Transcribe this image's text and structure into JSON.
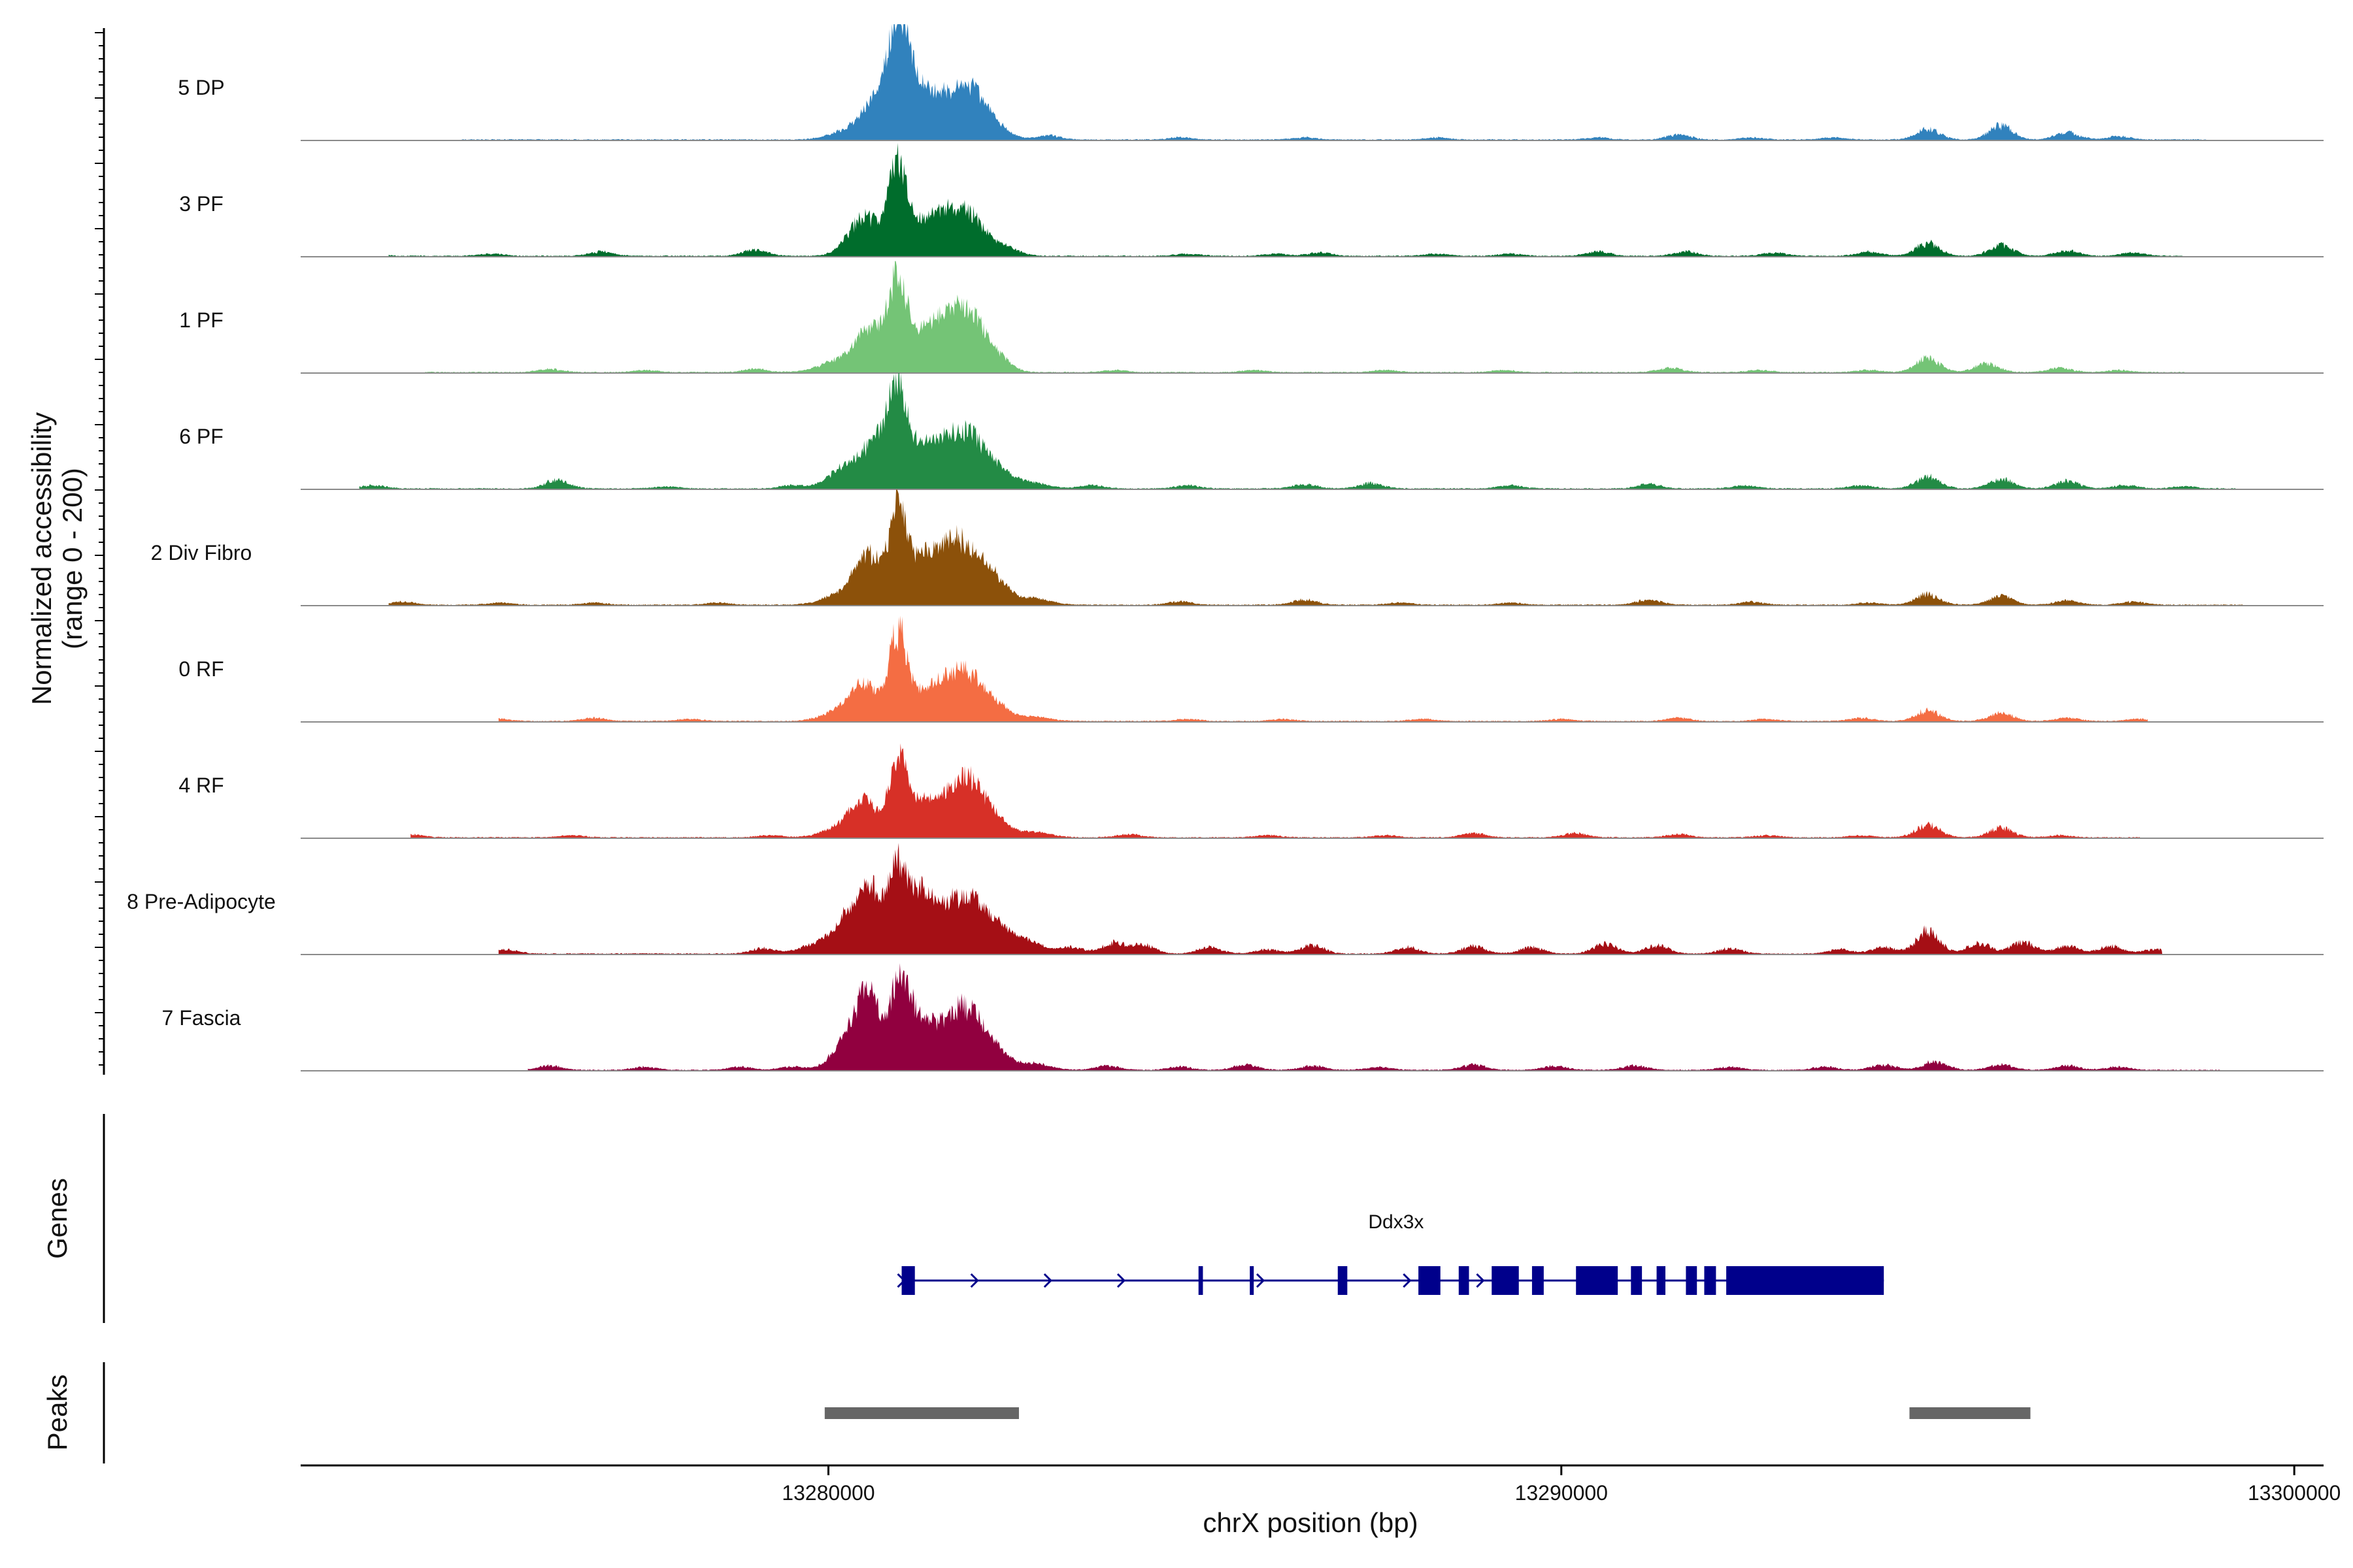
{
  "chart_data": {
    "type": "area",
    "title": "",
    "ylabel": "Normalized accessibility",
    "ylabel_range": "(range 0 - 200)",
    "yrange": [
      0,
      200
    ],
    "xlabel": "chrX position (bp)",
    "xlim": [
      13272800,
      13300400
    ],
    "xticks": [
      13280000,
      13290000,
      13300000
    ],
    "xtick_labels": [
      "13280000",
      "13290000",
      "13300000"
    ],
    "tracks": [
      {
        "name": "5 DP",
        "color": "#3182BD",
        "peaks": [
          [
            13280400,
            12,
            280
          ],
          [
            13280700,
            32,
            180
          ],
          [
            13280950,
            80,
            130
          ],
          [
            13281150,
            48,
            180
          ],
          [
            13281500,
            28,
            180
          ],
          [
            13281900,
            48,
            220
          ],
          [
            13282300,
            10,
            180
          ]
        ],
        "bumps": [
          [
            13283000,
            4
          ],
          [
            13284800,
            2
          ],
          [
            13286500,
            2
          ],
          [
            13288300,
            2
          ],
          [
            13290500,
            2
          ],
          [
            13291600,
            5
          ],
          [
            13292600,
            2
          ],
          [
            13293700,
            2
          ],
          [
            13295000,
            10
          ],
          [
            13296000,
            13
          ],
          [
            13296900,
            7
          ],
          [
            13297600,
            3
          ]
        ],
        "range": [
          13275000,
          13298800
        ]
      },
      {
        "name": "3 PF",
        "color": "#006D2C",
        "peaks": [
          [
            13280500,
            36,
            220
          ],
          [
            13280950,
            82,
            120
          ],
          [
            13281250,
            24,
            160
          ],
          [
            13281550,
            28,
            180
          ],
          [
            13281900,
            38,
            220
          ],
          [
            13282400,
            8,
            180
          ]
        ],
        "bumps": [
          [
            13273700,
            4
          ],
          [
            13275400,
            2
          ],
          [
            13276900,
            4
          ],
          [
            13279000,
            6
          ],
          [
            13284900,
            2
          ],
          [
            13286100,
            2
          ],
          [
            13286700,
            3
          ],
          [
            13288300,
            2
          ],
          [
            13289300,
            2
          ],
          [
            13290500,
            4
          ],
          [
            13291700,
            4
          ],
          [
            13292900,
            3
          ],
          [
            13294200,
            4
          ],
          [
            13295000,
            12
          ],
          [
            13296000,
            10
          ],
          [
            13296900,
            5
          ],
          [
            13297800,
            3
          ]
        ],
        "range": [
          13274000,
          13298500
        ]
      },
      {
        "name": "1 PF",
        "color": "#74C476",
        "peaks": [
          [
            13280200,
            12,
            280
          ],
          [
            13280600,
            40,
            180
          ],
          [
            13280950,
            80,
            120
          ],
          [
            13281250,
            26,
            160
          ],
          [
            13281550,
            36,
            200
          ],
          [
            13281900,
            52,
            220
          ],
          [
            13282300,
            12,
            180
          ]
        ],
        "bumps": [
          [
            13276200,
            3
          ],
          [
            13277500,
            2
          ],
          [
            13279000,
            3
          ],
          [
            13283900,
            2
          ],
          [
            13285800,
            2
          ],
          [
            13287600,
            2
          ],
          [
            13289200,
            2
          ],
          [
            13291500,
            4
          ],
          [
            13292700,
            2
          ],
          [
            13294200,
            2
          ],
          [
            13295000,
            13
          ],
          [
            13295800,
            8
          ],
          [
            13296800,
            4
          ],
          [
            13297600,
            2
          ]
        ],
        "range": [
          13274500,
          13298500
        ]
      },
      {
        "name": "6 PF",
        "color": "#238B45",
        "peaks": [
          [
            13280300,
            22,
            250
          ],
          [
            13280700,
            40,
            180
          ],
          [
            13280950,
            80,
            120
          ],
          [
            13281250,
            32,
            160
          ],
          [
            13281550,
            28,
            180
          ],
          [
            13281900,
            48,
            220
          ],
          [
            13282300,
            14,
            180
          ],
          [
            13282700,
            6,
            250
          ]
        ],
        "bumps": [
          [
            13273800,
            3
          ],
          [
            13276300,
            8
          ],
          [
            13277800,
            2
          ],
          [
            13279500,
            3
          ],
          [
            13283600,
            3
          ],
          [
            13284900,
            3
          ],
          [
            13286500,
            4
          ],
          [
            13287400,
            5
          ],
          [
            13289300,
            3
          ],
          [
            13291200,
            4
          ],
          [
            13292500,
            3
          ],
          [
            13294100,
            3
          ],
          [
            13295000,
            11
          ],
          [
            13296000,
            9
          ],
          [
            13296900,
            7
          ],
          [
            13297700,
            3
          ],
          [
            13298500,
            2
          ]
        ],
        "range": [
          13273600,
          13299200
        ]
      },
      {
        "name": "2 Div Fibro",
        "color": "#8C510A",
        "peaks": [
          [
            13280200,
            10,
            250
          ],
          [
            13280550,
            44,
            180
          ],
          [
            13280950,
            90,
            120
          ],
          [
            13281250,
            32,
            160
          ],
          [
            13281550,
            38,
            180
          ],
          [
            13281900,
            50,
            220
          ],
          [
            13282300,
            18,
            180
          ],
          [
            13282800,
            6,
            220
          ]
        ],
        "bumps": [
          [
            13274200,
            3
          ],
          [
            13275500,
            2
          ],
          [
            13276800,
            2
          ],
          [
            13278500,
            2
          ],
          [
            13284800,
            3
          ],
          [
            13286500,
            5
          ],
          [
            13287800,
            2
          ],
          [
            13289300,
            2
          ],
          [
            13291200,
            5
          ],
          [
            13292600,
            3
          ],
          [
            13294200,
            2
          ],
          [
            13295000,
            10
          ],
          [
            13296000,
            8
          ],
          [
            13296900,
            4
          ],
          [
            13297800,
            3
          ]
        ],
        "range": [
          13274000,
          13299300
        ]
      },
      {
        "name": "0 RF",
        "color": "#F46D43",
        "peaks": [
          [
            13280200,
            10,
            250
          ],
          [
            13280500,
            32,
            180
          ],
          [
            13280950,
            80,
            120
          ],
          [
            13281250,
            20,
            160
          ],
          [
            13281550,
            26,
            180
          ],
          [
            13281900,
            40,
            220
          ],
          [
            13282300,
            12,
            180
          ],
          [
            13282800,
            4,
            220
          ]
        ],
        "bumps": [
          [
            13275500,
            2
          ],
          [
            13276800,
            3
          ],
          [
            13278100,
            2
          ],
          [
            13284900,
            2
          ],
          [
            13286200,
            2
          ],
          [
            13288100,
            2
          ],
          [
            13290000,
            2
          ],
          [
            13291600,
            3
          ],
          [
            13292800,
            2
          ],
          [
            13294100,
            3
          ],
          [
            13295000,
            10
          ],
          [
            13296000,
            8
          ],
          [
            13296900,
            3
          ],
          [
            13297900,
            2
          ]
        ],
        "range": [
          13275500,
          13298000
        ]
      },
      {
        "name": "4 RF",
        "color": "#D73027",
        "peaks": [
          [
            13280200,
            10,
            250
          ],
          [
            13280500,
            30,
            180
          ],
          [
            13280950,
            70,
            120
          ],
          [
            13281250,
            28,
            160
          ],
          [
            13281550,
            20,
            180
          ],
          [
            13281900,
            52,
            220
          ],
          [
            13282300,
            12,
            180
          ],
          [
            13282800,
            5,
            220
          ]
        ],
        "bumps": [
          [
            13274300,
            3
          ],
          [
            13276500,
            2
          ],
          [
            13279200,
            2
          ],
          [
            13284100,
            3
          ],
          [
            13286000,
            2
          ],
          [
            13287600,
            2
          ],
          [
            13288800,
            4
          ],
          [
            13290200,
            4
          ],
          [
            13291600,
            3
          ],
          [
            13292800,
            2
          ],
          [
            13294100,
            2
          ],
          [
            13295000,
            12
          ],
          [
            13296000,
            9
          ],
          [
            13296800,
            2
          ]
        ],
        "range": [
          13274300,
          13297900
        ]
      },
      {
        "name": "8 Pre-Adipocyte",
        "color": "#A50F15",
        "peaks": [
          [
            13279900,
            10,
            250
          ],
          [
            13280300,
            34,
            180
          ],
          [
            13280600,
            55,
            150
          ],
          [
            13280950,
            78,
            120
          ],
          [
            13281250,
            52,
            150
          ],
          [
            13281550,
            26,
            180
          ],
          [
            13281900,
            48,
            220
          ],
          [
            13282300,
            22,
            180
          ],
          [
            13282700,
            12,
            200
          ],
          [
            13283300,
            6,
            180
          ]
        ],
        "bumps": [
          [
            13275600,
            4
          ],
          [
            13279100,
            5
          ],
          [
            13283900,
            10
          ],
          [
            13284300,
            8
          ],
          [
            13285200,
            6
          ],
          [
            13286000,
            4
          ],
          [
            13286600,
            8
          ],
          [
            13287900,
            6
          ],
          [
            13288800,
            7
          ],
          [
            13289600,
            6
          ],
          [
            13290600,
            9
          ],
          [
            13291300,
            8
          ],
          [
            13292300,
            5
          ],
          [
            13293800,
            4
          ],
          [
            13294400,
            6
          ],
          [
            13295000,
            22
          ],
          [
            13295700,
            10
          ],
          [
            13296300,
            11
          ],
          [
            13296900,
            7
          ],
          [
            13297500,
            7
          ],
          [
            13298100,
            4
          ]
        ],
        "range": [
          13275500,
          13298200
        ]
      },
      {
        "name": "7 Fascia",
        "color": "#91003F",
        "peaks": [
          [
            13280300,
            30,
            220
          ],
          [
            13280550,
            60,
            150
          ],
          [
            13280950,
            70,
            130
          ],
          [
            13281200,
            42,
            160
          ],
          [
            13281550,
            30,
            180
          ],
          [
            13281900,
            52,
            220
          ],
          [
            13282300,
            14,
            180
          ],
          [
            13282800,
            6,
            220
          ]
        ],
        "bumps": [
          [
            13276200,
            4
          ],
          [
            13277500,
            3
          ],
          [
            13278800,
            3
          ],
          [
            13279500,
            3
          ],
          [
            13283800,
            4
          ],
          [
            13284800,
            3
          ],
          [
            13285700,
            5
          ],
          [
            13286600,
            4
          ],
          [
            13287500,
            3
          ],
          [
            13288800,
            5
          ],
          [
            13289900,
            4
          ],
          [
            13291000,
            4
          ],
          [
            13292300,
            3
          ],
          [
            13293600,
            3
          ],
          [
            13294400,
            5
          ],
          [
            13295100,
            8
          ],
          [
            13296000,
            5
          ],
          [
            13296900,
            4
          ],
          [
            13297600,
            3
          ]
        ],
        "range": [
          13275900,
          13299000
        ]
      }
    ],
    "gene_panel_label": "Genes",
    "gene": {
      "name": "Ddx3x",
      "color": "#00008B",
      "start": 13281000,
      "end": 13294400,
      "exons": [
        [
          13281000,
          13281180
        ],
        [
          13285050,
          13285110
        ],
        [
          13285750,
          13285800
        ],
        [
          13286950,
          13287080
        ],
        [
          13288050,
          13288350
        ],
        [
          13288600,
          13288740
        ],
        [
          13289050,
          13289420
        ],
        [
          13289600,
          13289760
        ],
        [
          13290200,
          13290770
        ],
        [
          13290950,
          13291100
        ],
        [
          13291300,
          13291420
        ],
        [
          13291700,
          13291850
        ],
        [
          13291950,
          13292110
        ],
        [
          13292250,
          13294400
        ]
      ],
      "arrows": [
        13281000,
        13282000,
        13283000,
        13284000,
        13285900,
        13287900,
        13288900
      ]
    },
    "peaks_panel_label": "Peaks",
    "peak_regions": [
      [
        13279950,
        13282600
      ],
      [
        13294750,
        13296400
      ]
    ],
    "peak_color": "#666666"
  }
}
